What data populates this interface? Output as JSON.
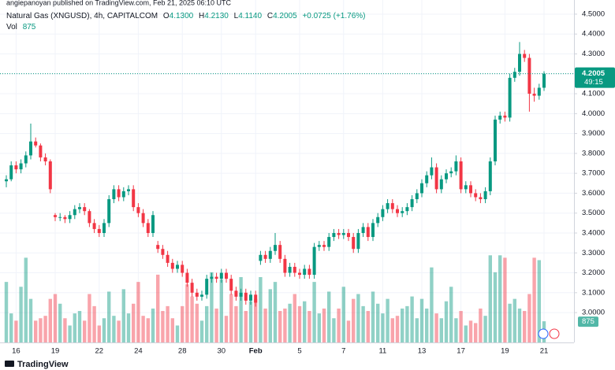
{
  "header": {
    "text": "angiepanoyan published on TradingView.com, Feb 21, 2025 06:10 UTC"
  },
  "footer": {
    "brand": "TradingView"
  },
  "chart_data": {
    "type": "candlestick",
    "symbol": "Natural Gas (XNGUSD), 4h, CAPITALCOM",
    "legend": {
      "open_label": "O",
      "open": "4.1300",
      "high_label": "H",
      "high": "4.2130",
      "low_label": "L",
      "low": "4.1140",
      "close_label": "C",
      "close": "4.2005",
      "change": "+0.0725 (+1.76%)",
      "volume_label": "Vol",
      "volume": "875"
    },
    "countdown": "49:15",
    "up_color": "#089981",
    "down_color": "#f23645",
    "grid": true,
    "ylim": [
      2.85,
      4.571
    ],
    "yticks": [
      {
        "value": 3.0,
        "label": "3.0000"
      },
      {
        "value": 3.1,
        "label": "3.1000"
      },
      {
        "value": 3.2,
        "label": "3.2000"
      },
      {
        "value": 3.3,
        "label": "3.3000"
      },
      {
        "value": 3.4,
        "label": "3.4000"
      },
      {
        "value": 3.5,
        "label": "3.5000"
      },
      {
        "value": 3.6,
        "label": "3.6000"
      },
      {
        "value": 3.7,
        "label": "3.7000"
      },
      {
        "value": 3.8,
        "label": "3.8000"
      },
      {
        "value": 3.9,
        "label": "3.9000"
      },
      {
        "value": 4.0,
        "label": "4.0000"
      },
      {
        "value": 4.1,
        "label": "4.1000"
      },
      {
        "value": 4.2,
        "label": "4.2000"
      },
      {
        "value": 4.3,
        "label": "4.3000"
      },
      {
        "value": 4.4,
        "label": "4.4000"
      },
      {
        "value": 4.5,
        "label": "4.5000"
      }
    ],
    "vlim": [
      0,
      4000
    ],
    "categories": [
      null,
      null,
      "16",
      null,
      null,
      null,
      null,
      null,
      null,
      null,
      "19",
      null,
      null,
      null,
      null,
      null,
      null,
      null,
      null,
      "22",
      null,
      null,
      null,
      null,
      null,
      null,
      null,
      "24",
      null,
      null,
      null,
      null,
      null,
      null,
      null,
      null,
      "28",
      null,
      null,
      null,
      null,
      null,
      null,
      null,
      "30",
      null,
      null,
      null,
      null,
      null,
      null,
      "Feb",
      null,
      null,
      null,
      null,
      null,
      null,
      null,
      null,
      "5",
      null,
      null,
      null,
      null,
      null,
      null,
      null,
      null,
      "7",
      null,
      null,
      null,
      null,
      null,
      null,
      null,
      "11",
      null,
      null,
      null,
      null,
      null,
      null,
      null,
      "13",
      null,
      null,
      null,
      null,
      null,
      null,
      null,
      "17",
      null,
      null,
      null,
      null,
      null,
      null,
      null,
      null,
      "19",
      null,
      null,
      null,
      null,
      null,
      null,
      null,
      "21"
    ],
    "opens": [
      3.66,
      3.67,
      3.74,
      3.72,
      3.75,
      3.79,
      3.86,
      3.84,
      3.78,
      3.76,
      3.49,
      3.48,
      3.48,
      3.47,
      3.49,
      3.52,
      3.53,
      3.51,
      3.45,
      3.42,
      3.4,
      3.45,
      3.57,
      3.62,
      3.58,
      3.61,
      3.62,
      3.53,
      3.5,
      3.45,
      3.4,
      3.34,
      3.32,
      3.29,
      3.25,
      3.22,
      3.24,
      3.2,
      3.15,
      3.1,
      3.08,
      3.09,
      3.17,
      3.18,
      3.17,
      3.2,
      3.17,
      3.11,
      3.08,
      3.1,
      3.06,
      3.09,
      3.26,
      3.29,
      3.27,
      3.31,
      3.34,
      3.27,
      3.2,
      3.23,
      3.2,
      3.19,
      3.22,
      3.19,
      3.33,
      3.34,
      3.33,
      3.38,
      3.4,
      3.39,
      3.4,
      3.38,
      3.32,
      3.4,
      3.43,
      3.38,
      3.45,
      3.48,
      3.52,
      3.55,
      3.52,
      3.5,
      3.51,
      3.53,
      3.57,
      3.6,
      3.65,
      3.69,
      3.73,
      3.62,
      3.67,
      3.7,
      3.71,
      3.76,
      3.62,
      3.64,
      3.6,
      3.58,
      3.57,
      3.61,
      3.76,
      3.97,
      3.99,
      3.98,
      4.18,
      4.21,
      4.3,
      4.28,
      4.1,
      4.09,
      4.13
    ],
    "highs": [
      3.69,
      3.76,
      3.76,
      3.77,
      3.81,
      3.95,
      3.88,
      3.85,
      3.8,
      3.77,
      3.5,
      3.5,
      3.49,
      3.51,
      3.54,
      3.55,
      3.55,
      3.52,
      3.47,
      3.44,
      3.47,
      3.59,
      3.64,
      3.64,
      3.63,
      3.64,
      3.64,
      3.55,
      3.52,
      3.47,
      3.51,
      3.36,
      3.34,
      3.31,
      3.27,
      3.26,
      3.26,
      3.22,
      3.17,
      3.12,
      3.11,
      3.19,
      3.2,
      3.2,
      3.22,
      3.22,
      3.19,
      3.13,
      3.12,
      3.12,
      3.11,
      3.11,
      3.31,
      3.31,
      3.33,
      3.4,
      3.36,
      3.29,
      3.25,
      3.25,
      3.22,
      3.24,
      3.24,
      3.35,
      3.36,
      3.36,
      3.4,
      3.42,
      3.42,
      3.42,
      3.42,
      3.4,
      3.42,
      3.45,
      3.45,
      3.47,
      3.5,
      3.54,
      3.57,
      3.57,
      3.54,
      3.53,
      3.55,
      3.59,
      3.62,
      3.67,
      3.71,
      3.78,
      3.75,
      3.69,
      3.72,
      3.73,
      3.79,
      3.78,
      3.66,
      3.66,
      3.62,
      3.6,
      3.63,
      3.78,
      3.99,
      4.01,
      4.01,
      4.2,
      4.23,
      4.36,
      4.32,
      4.3,
      4.13,
      4.15,
      4.213
    ],
    "lows": [
      3.63,
      3.66,
      3.7,
      3.7,
      3.73,
      3.77,
      3.83,
      3.76,
      3.74,
      3.6,
      3.46,
      3.46,
      3.45,
      3.45,
      3.47,
      3.5,
      3.49,
      3.43,
      3.4,
      3.38,
      3.38,
      3.43,
      3.55,
      3.56,
      3.56,
      3.59,
      3.51,
      3.48,
      3.43,
      3.38,
      3.38,
      3.3,
      3.27,
      3.23,
      3.2,
      3.2,
      3.18,
      3.13,
      3.08,
      3.06,
      3.06,
      3.07,
      3.15,
      3.15,
      3.15,
      3.15,
      3.09,
      3.06,
      3.06,
      3.04,
      3.04,
      3.03,
      3.24,
      3.25,
      3.25,
      3.29,
      3.25,
      3.18,
      3.18,
      3.18,
      3.17,
      3.17,
      3.17,
      3.17,
      3.31,
      3.31,
      3.31,
      3.36,
      3.37,
      3.37,
      3.36,
      3.3,
      3.3,
      3.38,
      3.36,
      3.36,
      3.43,
      3.46,
      3.5,
      3.5,
      3.48,
      3.48,
      3.49,
      3.51,
      3.55,
      3.58,
      3.63,
      3.67,
      3.6,
      3.6,
      3.65,
      3.68,
      3.69,
      3.6,
      3.6,
      3.58,
      3.56,
      3.55,
      3.55,
      3.59,
      3.74,
      3.95,
      3.96,
      3.96,
      4.16,
      4.19,
      4.26,
      4.01,
      4.06,
      4.07,
      4.114
    ],
    "closes": [
      3.67,
      3.74,
      3.72,
      3.75,
      3.79,
      3.86,
      3.84,
      3.78,
      3.76,
      3.62,
      3.48,
      3.48,
      3.47,
      3.49,
      3.52,
      3.53,
      3.51,
      3.45,
      3.42,
      3.4,
      3.45,
      3.57,
      3.62,
      3.58,
      3.61,
      3.62,
      3.53,
      3.5,
      3.45,
      3.4,
      3.49,
      3.32,
      3.29,
      3.25,
      3.22,
      3.24,
      3.2,
      3.15,
      3.1,
      3.08,
      3.09,
      3.17,
      3.18,
      3.17,
      3.2,
      3.17,
      3.11,
      3.08,
      3.1,
      3.06,
      3.09,
      3.05,
      3.29,
      3.27,
      3.31,
      3.34,
      3.27,
      3.2,
      3.23,
      3.2,
      3.19,
      3.22,
      3.19,
      3.33,
      3.34,
      3.33,
      3.38,
      3.4,
      3.39,
      3.4,
      3.38,
      3.32,
      3.4,
      3.43,
      3.38,
      3.45,
      3.48,
      3.52,
      3.55,
      3.52,
      3.5,
      3.51,
      3.53,
      3.57,
      3.6,
      3.65,
      3.69,
      3.73,
      3.62,
      3.67,
      3.7,
      3.71,
      3.76,
      3.62,
      3.64,
      3.6,
      3.58,
      3.57,
      3.61,
      3.76,
      3.97,
      3.99,
      3.98,
      4.18,
      4.21,
      4.3,
      4.28,
      4.1,
      4.09,
      4.13,
      4.2005
    ],
    "volumes": [
      2500,
      1200,
      900,
      2300,
      3500,
      1800,
      900,
      1000,
      1100,
      1800,
      2000,
      1600,
      1000,
      700,
      1200,
      1300,
      900,
      2000,
      1500,
      700,
      1000,
      2100,
      1100,
      900,
      2200,
      1200,
      1600,
      2500,
      1100,
      1000,
      1400,
      2800,
      1300,
      1500,
      1000,
      700,
      1500,
      2400,
      1900,
      1600,
      900,
      1500,
      2900,
      1400,
      2600,
      1100,
      2000,
      1500,
      2700,
      1300,
      1700,
      1800,
      2700,
      1400,
      2200,
      2500,
      1300,
      1400,
      1600,
      2000,
      1500,
      1700,
      1300,
      2500,
      1200,
      1400,
      2100,
      1000,
      1400,
      2300,
      900,
      1800,
      2000,
      1500,
      1300,
      2100,
      1600,
      1200,
      1800,
      1000,
      1100,
      1400,
      1500,
      1900,
      1000,
      1800,
      1400,
      3100,
      1200,
      1000,
      1700,
      2300,
      1000,
      1300,
      700,
      900,
      800,
      1400,
      1100,
      3600,
      2900,
      3600,
      3500,
      1600,
      1800,
      1400,
      1300,
      2000,
      3500,
      3400,
      875
    ]
  }
}
